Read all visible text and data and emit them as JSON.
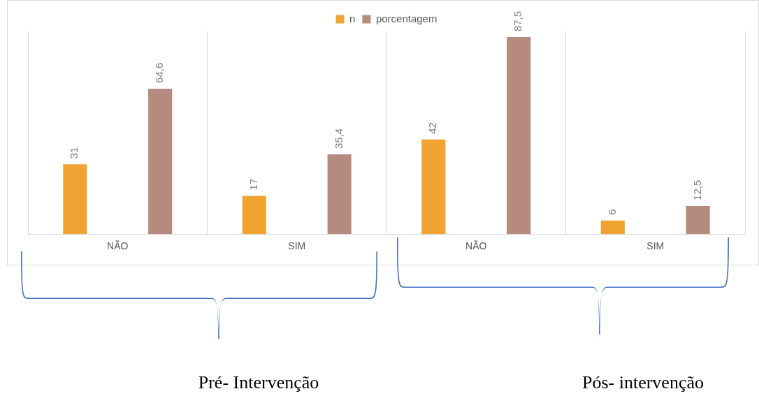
{
  "chart_data": {
    "type": "bar",
    "categories": [
      "NÃO",
      "SIM",
      "NÃO",
      "SIM"
    ],
    "series": [
      {
        "name": "n",
        "color": "#f0a330",
        "values": [
          31,
          17,
          42,
          6
        ]
      },
      {
        "name": "porcentagem",
        "color": "#b48b7e",
        "values": [
          64.6,
          35.4,
          87.5,
          12.5
        ],
        "value_labels": [
          "64,6",
          "35,4",
          "87,5",
          "12,5"
        ]
      }
    ],
    "data_labels": true,
    "grid": "x",
    "legend": "top",
    "annotations": [
      "Pré- Intervenção",
      "Pós- intervenção"
    ]
  }
}
